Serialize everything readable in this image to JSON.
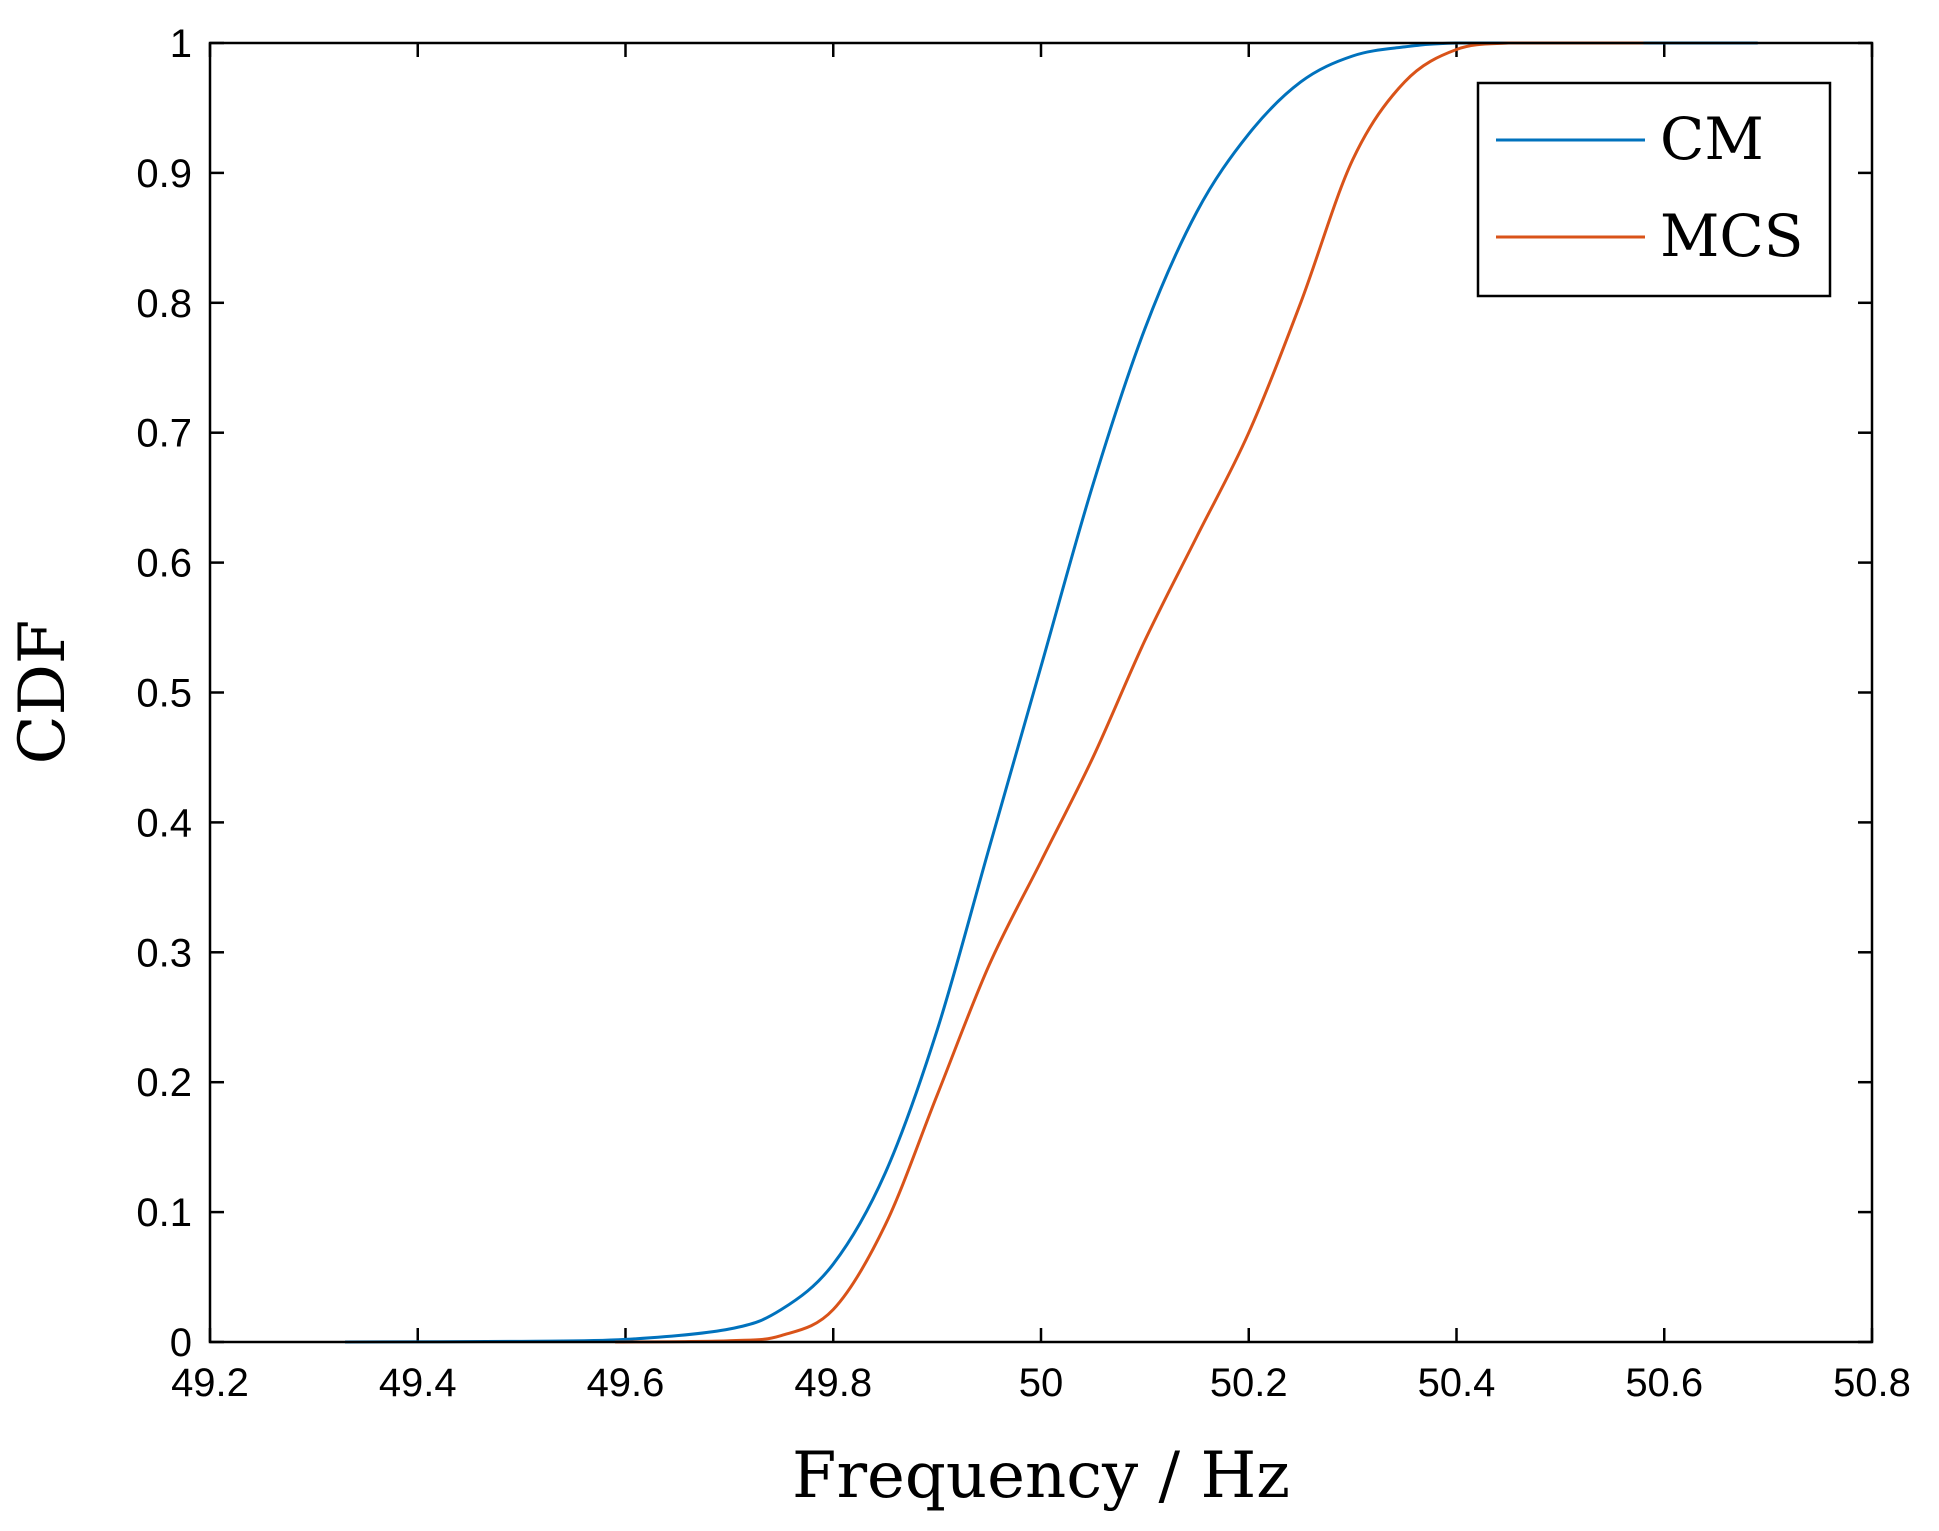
{
  "chart_data": {
    "type": "line",
    "title": "",
    "xlabel": "Frequency / Hz",
    "ylabel": "CDF",
    "xlim": [
      49.2,
      50.8
    ],
    "ylim": [
      0,
      1
    ],
    "xticks": [
      49.2,
      49.4,
      49.6,
      49.8,
      50,
      50.2,
      50.4,
      50.6,
      50.8
    ],
    "xtick_labels": [
      "49.2",
      "49.4",
      "49.6",
      "49.8",
      "50",
      "50.2",
      "50.4",
      "50.6",
      "50.8"
    ],
    "yticks": [
      0,
      0.1,
      0.2,
      0.3,
      0.4,
      0.5,
      0.6,
      0.7,
      0.8,
      0.9,
      1
    ],
    "ytick_labels": [
      "0",
      "0.1",
      "0.2",
      "0.3",
      "0.4",
      "0.5",
      "0.6",
      "0.7",
      "0.8",
      "0.9",
      "1"
    ],
    "grid": false,
    "legend_position": "top-right",
    "series": [
      {
        "name": "CM",
        "color": "#0072BD",
        "x": [
          49.33,
          49.5,
          49.6,
          49.7,
          49.75,
          49.8,
          49.85,
          49.9,
          49.95,
          50.0,
          50.05,
          50.1,
          50.15,
          50.2,
          50.25,
          50.3,
          50.35,
          50.4,
          50.5,
          50.6,
          50.69
        ],
        "y": [
          0,
          0.0005,
          0.002,
          0.01,
          0.025,
          0.06,
          0.13,
          0.24,
          0.38,
          0.52,
          0.66,
          0.78,
          0.87,
          0.93,
          0.97,
          0.99,
          0.997,
          1.0,
          1.0,
          1.0,
          1.0
        ]
      },
      {
        "name": "MCS",
        "color": "#D95319",
        "x": [
          49.59,
          49.7,
          49.75,
          49.8,
          49.85,
          49.9,
          49.95,
          50.0,
          50.05,
          50.1,
          50.15,
          50.2,
          50.25,
          50.3,
          50.35,
          50.4,
          50.45,
          50.5,
          50.58
        ],
        "y": [
          0,
          0.001,
          0.005,
          0.025,
          0.09,
          0.19,
          0.29,
          0.37,
          0.45,
          0.54,
          0.62,
          0.7,
          0.8,
          0.91,
          0.97,
          0.995,
          1.0,
          1.0,
          1.0
        ]
      }
    ]
  }
}
